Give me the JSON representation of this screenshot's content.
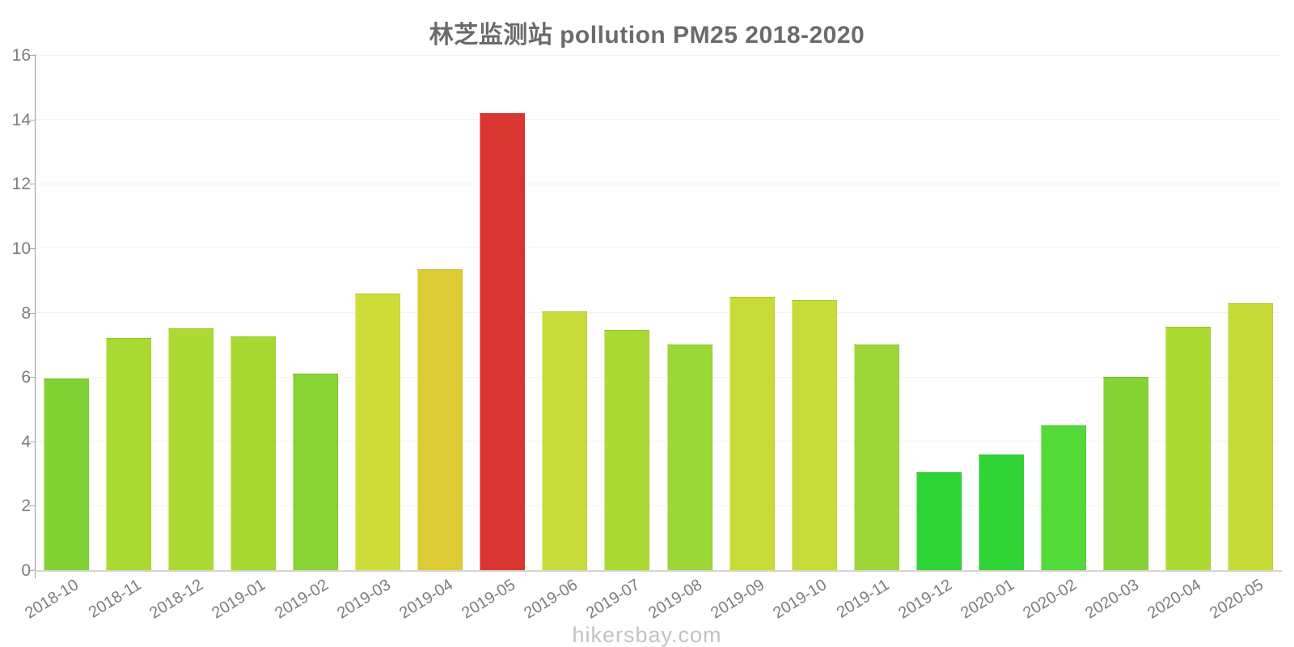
{
  "page": {
    "background_color": "#ffffff"
  },
  "chart_data": {
    "type": "bar",
    "title": "林芝监测站 pollution PM25 2018-2020",
    "xlabel": "",
    "ylabel": "",
    "ylim": [
      0,
      16
    ],
    "ytick_step": 2,
    "y_tick_labels": [
      "0",
      "2",
      "4",
      "6",
      "8",
      "10",
      "12",
      "14",
      "16"
    ],
    "grid": true,
    "legend_position": "none",
    "categories": [
      "2018-10",
      "2018-11",
      "2018-12",
      "2019-01",
      "2019-02",
      "2019-03",
      "2019-04",
      "2019-05",
      "2019-06",
      "2019-07",
      "2019-08",
      "2019-09",
      "2019-10",
      "2019-11",
      "2019-12",
      "2020-01",
      "2020-02",
      "2020-03",
      "2020-04",
      "2020-05"
    ],
    "values": [
      5.95,
      7.2,
      7.5,
      7.25,
      6.1,
      8.6,
      9.35,
      14.2,
      8.05,
      7.45,
      7.0,
      8.5,
      8.4,
      7.0,
      3.05,
      3.6,
      4.5,
      6.0,
      7.55,
      8.3
    ],
    "bar_colors": [
      "#82D236",
      "#A8DA31",
      "#ABDA32",
      "#A6D931",
      "#89D334",
      "#CEDD3A",
      "#DCCB35",
      "#D93531",
      "#C9DB3A",
      "#AADA33",
      "#9BD737",
      "#C8DB39",
      "#C7DB39",
      "#9CD737",
      "#2ED335",
      "#30D435",
      "#52DA38",
      "#84D234",
      "#ABDA32",
      "#C6DB38"
    ]
  },
  "axis_colors": {
    "y_axis_line": "#9a9a9a",
    "x_axis_line": "#d8d4d4",
    "tick_label_color": "#7d7d7d",
    "gridline_color": "#f3f3f3"
  },
  "title_color": "#6b6b6b",
  "watermark": {
    "text": "hikersbay.com",
    "color": "#c2c2c2"
  }
}
